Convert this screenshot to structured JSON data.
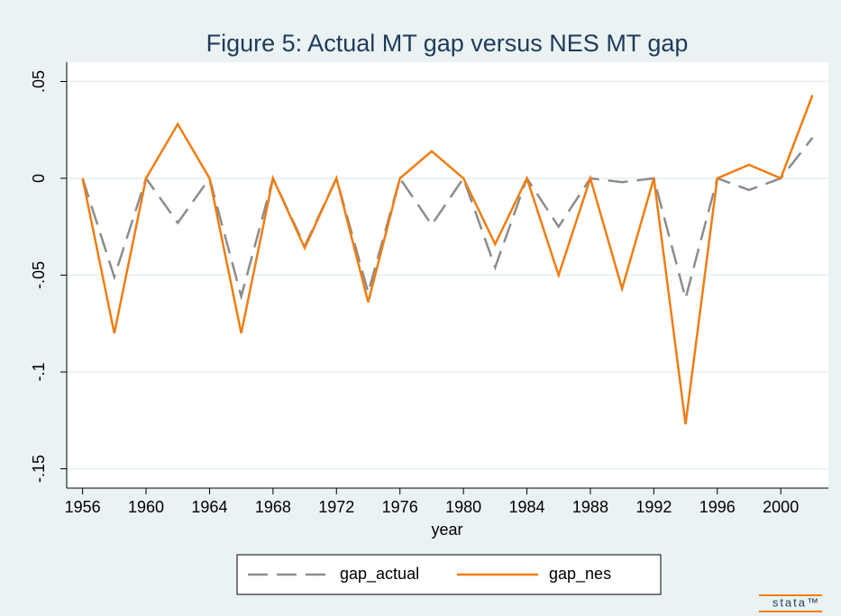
{
  "chart_data": {
    "type": "line",
    "title": "Figure 5: Actual MT gap versus NES MT gap",
    "x_label": "year",
    "x": [
      1956,
      1958,
      1960,
      1962,
      1964,
      1966,
      1968,
      1970,
      1972,
      1974,
      1976,
      1978,
      1980,
      1982,
      1984,
      1986,
      1988,
      1990,
      1992,
      1994,
      1996,
      1998,
      2000,
      2002
    ],
    "series": [
      {
        "name": "gap_actual",
        "color": "#8c8c8c",
        "dashed": true,
        "values": [
          0,
          -0.051,
          0,
          -0.023,
          0,
          -0.061,
          0,
          -0.035,
          0,
          -0.059,
          0,
          -0.024,
          0,
          -0.046,
          0,
          -0.025,
          0,
          -0.002,
          0,
          -0.062,
          0,
          -0.006,
          0,
          0.021
        ]
      },
      {
        "name": "gap_nes",
        "color": "#f07d12",
        "dashed": false,
        "values": [
          0,
          -0.08,
          0,
          0.028,
          0,
          -0.08,
          0,
          -0.036,
          0,
          -0.064,
          0,
          0.014,
          0,
          -0.034,
          0,
          -0.05,
          0,
          -0.057,
          0,
          -0.127,
          0,
          0.007,
          0,
          0.043
        ]
      }
    ],
    "xlim": [
      1955,
      2003
    ],
    "xticks": [
      1956,
      1960,
      1964,
      1968,
      1972,
      1976,
      1980,
      1984,
      1988,
      1992,
      1996,
      2000
    ],
    "ylim": [
      -0.16,
      0.06
    ],
    "yticks": [
      {
        "value": -0.15,
        "label": "-.15"
      },
      {
        "value": -0.1,
        "label": "-.1"
      },
      {
        "value": -0.05,
        "label": "-.05"
      },
      0,
      {
        "value": 0.05,
        "label": ".05"
      }
    ],
    "grid": true,
    "legend": "bottom",
    "logo": "stata™"
  }
}
